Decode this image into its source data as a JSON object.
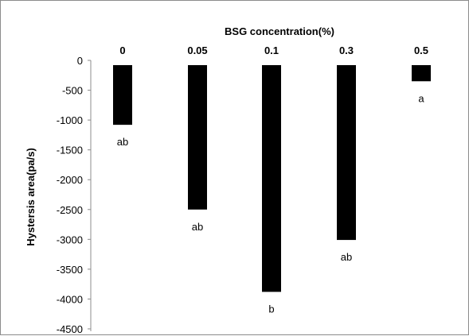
{
  "chart_data": {
    "type": "bar",
    "title": "BSG concentration(%)",
    "xlabel": "",
    "ylabel": "Hystersis area(pa/s)",
    "categories": [
      "0",
      "0.05",
      "0.1",
      "0.3",
      "0.5"
    ],
    "values": [
      -1080,
      -2500,
      -3880,
      -3010,
      -350
    ],
    "annotations": [
      "ab",
      "ab",
      "b",
      "ab",
      "a"
    ],
    "ylim": [
      -4500,
      0
    ],
    "yticks": [
      0,
      -500,
      -1000,
      -1500,
      -2000,
      -2500,
      -3000,
      -3500,
      -4000,
      -4500
    ],
    "bar_color": "#000000",
    "grid": false,
    "legend": "none"
  }
}
